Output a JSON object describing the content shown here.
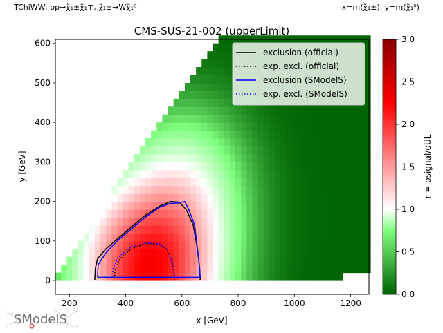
{
  "header": {
    "process": "TChiWW: pp→χ̃₁±χ̃₁∓, χ̃₁±→Wχ̃₁⁰",
    "axes_def": "x=m(χ̃₁±), y=m(χ̃₁⁰)"
  },
  "logo": {
    "text": "SModelS"
  },
  "colors": {
    "official": "#000000",
    "smodels": "#0000ff",
    "cmap": [
      "#006400",
      "#ffffff",
      "#ff0000",
      "#8b0000"
    ]
  },
  "chart_data": {
    "type": "heatmap",
    "title": "CMS-SUS-21-002 (upperLimit)",
    "xlabel": "x [GeV]",
    "ylabel": "y [GeV]",
    "xlim": [
      150,
      1265
    ],
    "ylim": [
      -35,
      610
    ],
    "xticks": [
      200,
      400,
      600,
      800,
      1000,
      1200
    ],
    "yticks": [
      0,
      100,
      200,
      300,
      400,
      500,
      600
    ],
    "colorbar": {
      "label": "r = σsignal/σUL",
      "range": [
        0.0,
        3.0
      ],
      "ticks": [
        "0.0",
        "0.5",
        "1.0",
        "1.5",
        "2.0",
        "2.5",
        "3.0"
      ]
    },
    "legend": {
      "placement": "upper right",
      "entries": [
        {
          "name": "exclusion (official)",
          "color": "#000000",
          "style": "solid"
        },
        {
          "name": "exp. excl. (official)",
          "color": "#000000",
          "style": "dotted"
        },
        {
          "name": "exclusion (SModelS)",
          "color": "#0000ff",
          "style": "solid"
        },
        {
          "name": "exp. excl. (SModelS)",
          "color": "#0000ff",
          "style": "dotted"
        }
      ]
    },
    "heatmap_peak": {
      "x": 480,
      "y": 25,
      "r": 2.2
    },
    "lines": [
      {
        "name": "exclusion (official)",
        "color": "#000000",
        "style": "solid",
        "points": [
          [
            290,
            0
          ],
          [
            292,
            30
          ],
          [
            300,
            55
          ],
          [
            330,
            80
          ],
          [
            370,
            105
          ],
          [
            420,
            135
          ],
          [
            470,
            165
          ],
          [
            520,
            188
          ],
          [
            560,
            200
          ],
          [
            590,
            198
          ],
          [
            615,
            180
          ],
          [
            640,
            140
          ],
          [
            655,
            80
          ],
          [
            663,
            30
          ],
          [
            665,
            0
          ]
        ]
      },
      {
        "name": "exp. excl. (official)",
        "color": "#000000",
        "style": "dotted",
        "points": [
          [
            360,
            5
          ],
          [
            362,
            25
          ],
          [
            380,
            55
          ],
          [
            420,
            80
          ],
          [
            470,
            93
          ],
          [
            510,
            92
          ],
          [
            545,
            80
          ],
          [
            565,
            50
          ],
          [
            572,
            20
          ],
          [
            575,
            0
          ]
        ]
      },
      {
        "name": "exclusion (SModelS)",
        "color": "#0000ff",
        "style": "solid",
        "points": [
          [
            300,
            8
          ],
          [
            302,
            40
          ],
          [
            330,
            70
          ],
          [
            370,
            100
          ],
          [
            420,
            130
          ],
          [
            470,
            160
          ],
          [
            520,
            185
          ],
          [
            560,
            195
          ],
          [
            590,
            196
          ],
          [
            610,
            200
          ],
          [
            625,
            178
          ],
          [
            645,
            140
          ],
          [
            655,
            80
          ],
          [
            663,
            30
          ],
          [
            665,
            8
          ],
          [
            300,
            8
          ]
        ]
      },
      {
        "name": "exp. excl. (SModelS)",
        "color": "#0000ff",
        "style": "dotted",
        "points": [
          [
            352,
            8
          ],
          [
            355,
            30
          ],
          [
            375,
            60
          ],
          [
            420,
            85
          ],
          [
            470,
            95
          ],
          [
            520,
            93
          ],
          [
            545,
            80
          ],
          [
            563,
            50
          ],
          [
            572,
            20
          ],
          [
            575,
            8
          ],
          [
            352,
            8
          ]
        ]
      }
    ]
  }
}
